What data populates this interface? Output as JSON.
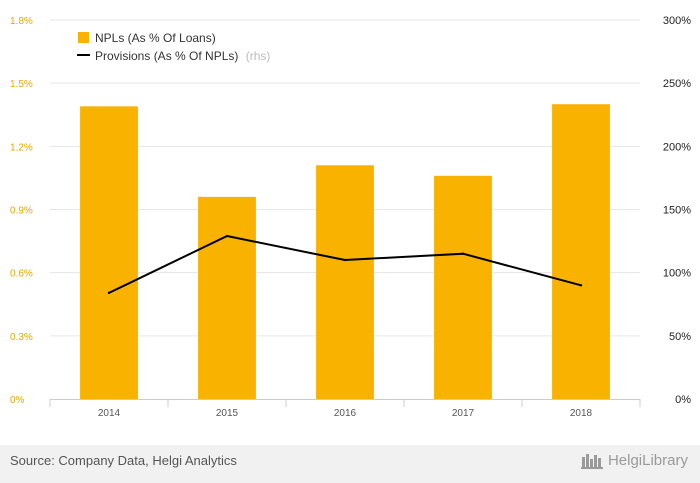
{
  "chart_data": {
    "type": "bar+line",
    "categories": [
      "2014",
      "2015",
      "2016",
      "2017",
      "2018"
    ],
    "series": [
      {
        "name": "NPLs (As % Of Loans)",
        "type": "bar",
        "axis": "left",
        "values": [
          1.39,
          0.96,
          1.11,
          1.06,
          1.4
        ],
        "color": "#f9b200"
      },
      {
        "name": "Provisions (As % Of NPLs)",
        "type": "line",
        "axis": "right",
        "values": [
          84,
          129,
          110,
          115,
          90
        ],
        "color": "#000000"
      }
    ],
    "y_left": {
      "ticks": [
        "0%",
        "0.3%",
        "0.6%",
        "0.9%",
        "1.2%",
        "1.5%",
        "1.8%"
      ],
      "ylim": [
        0,
        1.8
      ]
    },
    "y_right": {
      "ticks": [
        "0%",
        "50%",
        "100%",
        "150%",
        "200%",
        "250%",
        "300%"
      ],
      "ylim": [
        0,
        300
      ]
    },
    "legend": {
      "position": "top-left",
      "rhs_suffix": "(rhs)"
    },
    "grid": true
  },
  "footer": {
    "source": "Source: Company Data, Helgi Analytics",
    "brand": "HelgiLibrary"
  },
  "colors": {
    "accent": "#f9b200",
    "line": "#000000",
    "grid": "#e6e6e6"
  }
}
